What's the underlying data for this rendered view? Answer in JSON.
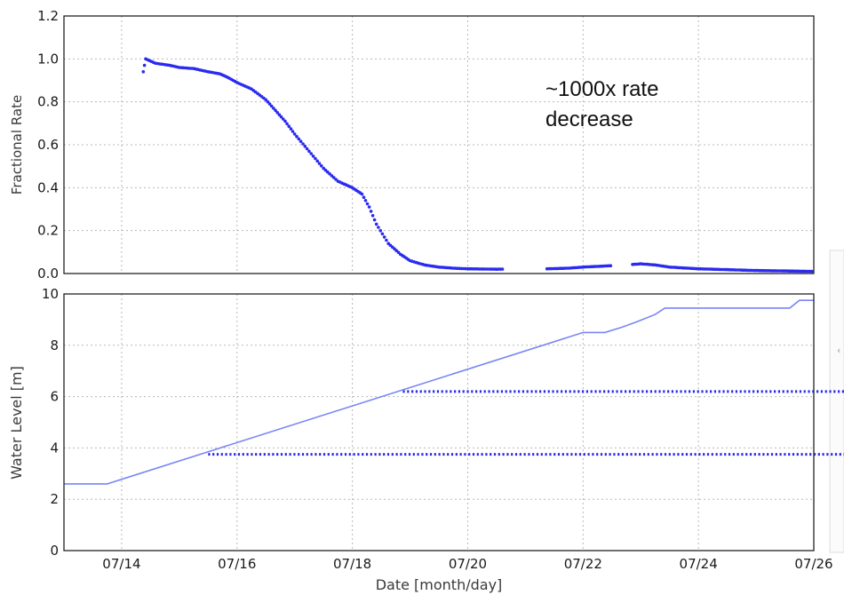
{
  "chart_data": [
    {
      "type": "scatter",
      "panel": "top",
      "ylabel": "Fractional Rate",
      "xlabel": "",
      "xlim": [
        "07/13",
        "07/26"
      ],
      "ylim": [
        0.0,
        1.2
      ],
      "yticks": [
        "0.0",
        "0.2",
        "0.4",
        "0.6",
        "0.8",
        "1.0",
        "1.2"
      ],
      "grid": true,
      "color": "#2a2af0",
      "annotation": [
        "~1000x rate",
        "decrease"
      ],
      "series": [
        {
          "points": [
            [
              "07/14 09:00",
              0.94
            ],
            [
              "07/14 10:00",
              1.0
            ],
            [
              "07/14 14:00",
              0.98
            ],
            [
              "07/14 20:00",
              0.97
            ],
            [
              "07/15 00:00",
              0.96
            ],
            [
              "07/15 06:00",
              0.955
            ],
            [
              "07/15 12:00",
              0.94
            ],
            [
              "07/15 17:00",
              0.93
            ],
            [
              "07/15 20:00",
              0.915
            ],
            [
              "07/16 00:00",
              0.89
            ],
            [
              "07/16 06:00",
              0.86
            ],
            [
              "07/16 12:00",
              0.81
            ],
            [
              "07/16 16:00",
              0.76
            ],
            [
              "07/16 20:00",
              0.71
            ],
            [
              "07/17 00:00",
              0.65
            ],
            [
              "07/17 06:00",
              0.57
            ],
            [
              "07/17 12:00",
              0.49
            ],
            [
              "07/17 18:00",
              0.43
            ],
            [
              "07/18 00:00",
              0.4
            ],
            [
              "07/18 04:00",
              0.37
            ],
            [
              "07/18 07:00",
              0.31
            ],
            [
              "07/18 10:00",
              0.23
            ],
            [
              "07/18 15:00",
              0.14
            ],
            [
              "07/18 20:00",
              0.09
            ],
            [
              "07/19 00:00",
              0.06
            ],
            [
              "07/19 06:00",
              0.04
            ],
            [
              "07/19 12:00",
              0.03
            ],
            [
              "07/19 18:00",
              0.025
            ],
            [
              "07/20 00:00",
              0.022
            ],
            [
              "07/20 12:00",
              0.02
            ],
            [
              "07/21 09:00",
              0.022
            ],
            [
              "07/21 18:00",
              0.025
            ],
            [
              "07/22 00:00",
              0.03
            ],
            [
              "07/22 09:00",
              0.035
            ],
            [
              "07/22 18:00",
              0.04
            ],
            [
              "07/23 00:00",
              0.045
            ],
            [
              "07/23 06:00",
              0.04
            ],
            [
              "07/23 12:00",
              0.03
            ],
            [
              "07/24 00:00",
              0.022
            ],
            [
              "07/24 12:00",
              0.018
            ],
            [
              "07/25 00:00",
              0.014
            ],
            [
              "07/25 12:00",
              0.012
            ],
            [
              "07/26 00:00",
              0.01
            ]
          ],
          "gaps": [
            [
              "07/20 15:00",
              "07/21 09:00"
            ],
            [
              "07/22 12:00",
              "07/22 20:00"
            ]
          ]
        }
      ]
    },
    {
      "type": "line",
      "panel": "bottom",
      "xlabel": "Date [month/day]",
      "ylabel": "Water Level [m]",
      "xlim": [
        "07/13",
        "07/26"
      ],
      "ylim": [
        0,
        10
      ],
      "xticks": [
        "07/14",
        "07/16",
        "07/18",
        "07/20",
        "07/22",
        "07/24",
        "07/26"
      ],
      "yticks": [
        "0",
        "2",
        "4",
        "6",
        "8",
        "10"
      ],
      "grid": true,
      "color": "#7a86f5",
      "series": [
        {
          "points": [
            [
              "07/13 00:00",
              2.6
            ],
            [
              "07/13 18:00",
              2.6
            ],
            [
              "07/22 00:00",
              8.5
            ],
            [
              "07/22 09:00",
              8.5
            ],
            [
              "07/22 16:00",
              8.7
            ],
            [
              "07/22 22:00",
              8.9
            ],
            [
              "07/23 06:00",
              9.2
            ],
            [
              "07/23 10:00",
              9.45
            ],
            [
              "07/25 14:00",
              9.45
            ],
            [
              "07/25 18:00",
              9.75
            ],
            [
              "07/26 00:00",
              9.75
            ]
          ]
        }
      ],
      "reference_lines": [
        {
          "y": 3.75,
          "from": "07/15 12:00",
          "color": "#2a2af0"
        },
        {
          "y": 6.2,
          "from": "07/18 21:00",
          "color": "#2a2af0"
        }
      ]
    }
  ]
}
